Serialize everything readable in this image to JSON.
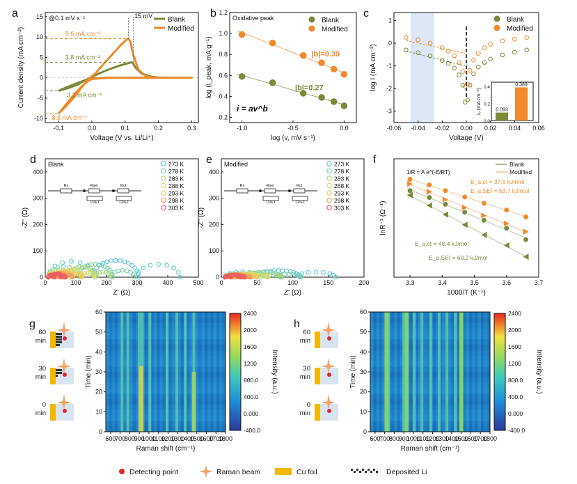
{
  "colors": {
    "blank": "#7a8a3a",
    "modified": "#f08a2a",
    "axis": "#111111",
    "cu": "#f5b800",
    "dot": "#e0262c",
    "shade": "#dce8f6"
  },
  "panels": {
    "a": {
      "letter": "a",
      "scan_rate": "@0.1 mV s⁻¹",
      "xlabel": "Voltage (V vs. Li/Li⁺)",
      "ylabel": "Current density (mA cm⁻²)",
      "xticks": [
        "-0.1",
        "0.0",
        "0.1",
        "0.2",
        "0.3"
      ],
      "yticks": [
        "-10",
        "-5",
        "0",
        "5",
        "10",
        "15"
      ],
      "xlim": [
        -0.14,
        0.32
      ],
      "ylim": [
        -11,
        16
      ],
      "legend": [
        "Blank",
        "Modified"
      ],
      "annotations": {
        "mod_peak": "9.6 mA cm⁻²",
        "blank_peak": "3.8 mA cm⁻²",
        "blank_min": "3.2 mA cm⁻²",
        "mod_min": "8.8 mA cm⁻²",
        "shift": "15 mV"
      },
      "series": [
        {
          "name": "Blank",
          "x": [
            -0.1,
            -0.07,
            -0.04,
            -0.02,
            0.0,
            0.02,
            0.05,
            0.08,
            0.11,
            0.12,
            0.125,
            0.13,
            0.15,
            0.18,
            0.2,
            0.22,
            0.24,
            0.26,
            0.28,
            0.3,
            0.25,
            0.2,
            0.15,
            0.1,
            0.05,
            0.0,
            -0.02,
            -0.05,
            -0.08,
            -0.1
          ],
          "y": [
            -3.2,
            -2.5,
            -1.6,
            -0.6,
            0.2,
            1.0,
            2.0,
            2.9,
            3.6,
            3.8,
            3.4,
            2.6,
            1.0,
            0.25,
            0.05,
            0.0,
            0.0,
            0.0,
            0.0,
            0.0,
            0.0,
            0.0,
            0.0,
            0.0,
            0.0,
            -0.2,
            -0.6,
            -1.5,
            -2.5,
            -3.2
          ]
        },
        {
          "name": "Modified",
          "x": [
            -0.1,
            -0.08,
            -0.05,
            -0.03,
            -0.01,
            0.01,
            0.03,
            0.06,
            0.09,
            0.105,
            0.11,
            0.115,
            0.125,
            0.14,
            0.16,
            0.18,
            0.2,
            0.22,
            0.24,
            0.26,
            0.28,
            0.3,
            0.25,
            0.2,
            0.15,
            0.1,
            0.05,
            0.0,
            -0.02,
            -0.05,
            -0.08,
            -0.1
          ],
          "y": [
            -8.8,
            -7.2,
            -4.5,
            -2.3,
            -0.3,
            1.0,
            2.9,
            5.6,
            8.3,
            9.4,
            9.6,
            9.0,
            5.5,
            2.0,
            0.5,
            0.1,
            0.0,
            0.0,
            0.0,
            0.0,
            0.0,
            0.0,
            0.0,
            0.0,
            0.0,
            0.0,
            0.0,
            -0.3,
            -1.3,
            -3.8,
            -6.8,
            -8.8
          ]
        }
      ]
    },
    "b": {
      "letter": "b",
      "title": "Oxidative peak",
      "xlabel": "log (v, mV s⁻¹)",
      "ylabel": "log (i_peak, mA g⁻¹)",
      "xticks": [
        "-1.0",
        "-0.5",
        "0.0"
      ],
      "yticks": [
        "0.2",
        "0.4",
        "0.6",
        "0.8",
        "1.0",
        "1.2"
      ],
      "xlim": [
        -1.12,
        0.12
      ],
      "ylim": [
        0.15,
        1.2
      ],
      "legend": [
        "Blank",
        "Modified"
      ],
      "equation": "i = av^b",
      "slope_mod": "|b|=0.39",
      "slope_blank": "|b|=0.27",
      "series": [
        {
          "name": "Blank",
          "x": [
            -1.0,
            -0.7,
            -0.4,
            -0.22,
            -0.1,
            0.0
          ],
          "y": [
            0.59,
            0.53,
            0.43,
            0.39,
            0.35,
            0.31
          ]
        },
        {
          "name": "Modified",
          "x": [
            -1.0,
            -0.7,
            -0.4,
            -0.22,
            -0.1,
            0.0
          ],
          "y": [
            0.99,
            0.91,
            0.79,
            0.72,
            0.66,
            0.61
          ]
        }
      ]
    },
    "c": {
      "letter": "c",
      "xlabel": "Voltage (V)",
      "ylabel": "log I (mA cm⁻²)",
      "xticks": [
        "-0.06",
        "-0.04",
        "-0.02",
        "0.00",
        "0.02",
        "0.04",
        "0.06"
      ],
      "yticks": [
        "-3",
        "-2",
        "-1",
        "0",
        "1"
      ],
      "xlim": [
        -0.06,
        0.06
      ],
      "ylim": [
        -3.5,
        1.35
      ],
      "legend": [
        "Blank",
        "Modified"
      ],
      "inset": {
        "ylabel": "I₀ (mA cm⁻²)",
        "values": [
          0.093,
          0.389
        ],
        "labels": [
          "0.093",
          "0.389"
        ],
        "ylim": [
          0.0,
          0.45
        ],
        "yticks": [
          "0.0",
          "0.2",
          "0.4"
        ]
      },
      "series": [
        {
          "name": "Blank",
          "x": [
            -0.05,
            -0.04,
            -0.03,
            -0.02,
            -0.015,
            -0.01,
            -0.006,
            -0.003,
            -0.001,
            0.001,
            0.003,
            0.006,
            0.01,
            0.015,
            0.02,
            0.03,
            0.04,
            0.05
          ],
          "y": [
            -0.3,
            -0.42,
            -0.56,
            -0.76,
            -0.9,
            -1.1,
            -1.4,
            -1.85,
            -2.6,
            -2.5,
            -1.85,
            -1.35,
            -1.05,
            -0.85,
            -0.7,
            -0.52,
            -0.4,
            -0.3
          ]
        },
        {
          "name": "Modified",
          "x": [
            -0.05,
            -0.04,
            -0.03,
            -0.02,
            -0.015,
            -0.01,
            -0.006,
            -0.003,
            -0.001,
            0.001,
            0.003,
            0.006,
            0.01,
            0.015,
            0.02,
            0.03,
            0.04,
            0.05
          ],
          "y": [
            0.25,
            0.15,
            0.0,
            -0.2,
            -0.35,
            -0.55,
            -0.85,
            -1.25,
            -1.9,
            -1.8,
            -1.2,
            -0.75,
            -0.45,
            -0.2,
            -0.05,
            0.1,
            0.18,
            0.25
          ]
        }
      ]
    },
    "d": {
      "letter": "d",
      "title": "Blank",
      "xlabel": "Z' (Ω)",
      "ylabel": "-Z'' (Ω)",
      "xticks": [
        "0",
        "100",
        "200",
        "300",
        "400",
        "500"
      ],
      "yticks": [
        "0",
        "100",
        "200",
        "300",
        "400"
      ],
      "xlim": [
        0,
        500
      ],
      "ylim": [
        0,
        450
      ],
      "circuit": [
        "Rs",
        "Rsei",
        "Rct",
        "CPE1",
        "CPE2"
      ],
      "temps": [
        "273 K",
        "278 K",
        "283 K",
        "288 K",
        "293 K",
        "298 K",
        "303 K"
      ],
      "temp_colors": [
        "#5ec9d1",
        "#7dcfb0",
        "#a9d680",
        "#d8dc72",
        "#f2c55c",
        "#f29a5a",
        "#ec5e5e"
      ],
      "arcs": [
        [
          10,
          160,
          160,
          300,
          440
        ],
        [
          10,
          110,
          110,
          215,
          290
        ],
        [
          10,
          80,
          80,
          160,
          215
        ],
        [
          10,
          60,
          60,
          115,
          160
        ],
        [
          10,
          45,
          45,
          85,
          118
        ],
        [
          10,
          35,
          35,
          62,
          88
        ],
        [
          10,
          28,
          28,
          48,
          65
        ]
      ]
    },
    "e": {
      "letter": "e",
      "title": "Modified",
      "xlabel": "Z' (Ω)",
      "ylabel": "-Z'' (Ω)",
      "xticks": [
        "0",
        "50",
        "100",
        "150",
        "200"
      ],
      "yticks": [
        "0",
        "100",
        "200",
        "300",
        "400"
      ],
      "xlim": [
        0,
        200
      ],
      "ylim": [
        0,
        450
      ],
      "circuit": [
        "Rs",
        "Rsei",
        "Rct",
        "CPE1",
        "CPE2"
      ],
      "temps": [
        "273 K",
        "278 K",
        "283 K",
        "288 K",
        "293 K",
        "298 K",
        "303 K"
      ],
      "arcs": [
        [
          5,
          55,
          55,
          105,
          160
        ],
        [
          5,
          42,
          42,
          78,
          112
        ],
        [
          5,
          32,
          32,
          60,
          85
        ],
        [
          5,
          25,
          25,
          45,
          65
        ],
        [
          5,
          20,
          20,
          36,
          50
        ],
        [
          5,
          16,
          16,
          29,
          40
        ],
        [
          5,
          13,
          13,
          23,
          32
        ]
      ]
    },
    "f": {
      "letter": "f",
      "xlabel": "1000/T (K⁻¹)",
      "ylabel": "lnR⁻¹ (Ω⁻¹)",
      "xticks": [
        "3.3",
        "3.4",
        "3.5",
        "3.6",
        "3.7"
      ],
      "xlim": [
        3.25,
        3.7
      ],
      "ylim": [
        -6.6,
        -1.4
      ],
      "legend": [
        "Blank",
        "Modified"
      ],
      "equation": "1/R = A e^(-E/RT)",
      "labels": {
        "mod_ct": "E_a,ct = 37.6 kJ/mol",
        "mod_sei": "E_a,SEI = 53.7 kJ/mol",
        "blank_ct": "E_a,ct = 48.4 kJ/mol",
        "blank_sei": "E_a,SEI = 60.2 kJ/mol"
      },
      "x": [
        3.3,
        3.36,
        3.41,
        3.47,
        3.53,
        3.6,
        3.66
      ],
      "series": [
        {
          "name": "Modified ct",
          "y": [
            -2.3,
            -2.55,
            -2.8,
            -3.08,
            -3.35,
            -3.65,
            -3.95
          ]
        },
        {
          "name": "Modified SEI",
          "y": [
            -2.5,
            -2.85,
            -3.2,
            -3.55,
            -3.9,
            -4.25,
            -4.6
          ]
        },
        {
          "name": "Blank ct",
          "y": [
            -2.8,
            -3.1,
            -3.4,
            -3.75,
            -4.1,
            -4.45,
            -4.95
          ]
        },
        {
          "name": "Blank SEI",
          "y": [
            -3.0,
            -3.45,
            -3.85,
            -4.3,
            -4.75,
            -5.2,
            -5.7
          ]
        }
      ]
    },
    "g": {
      "letter": "g",
      "xlabel": "Raman shift (cm⁻¹)",
      "ylabel": "Time (min)",
      "xticks": [
        "600",
        "700",
        "800",
        "900",
        "1000",
        "1100",
        "1200",
        "1300",
        "1400",
        "1500",
        "1600",
        "1700",
        "1800"
      ],
      "yticks": [
        "0",
        "10",
        "20",
        "30",
        "40",
        "50",
        "60"
      ],
      "xlim": [
        550,
        1800
      ],
      "ylim": [
        0,
        60
      ],
      "bands": [
        720,
        780,
        900,
        930,
        1010,
        1190,
        1290,
        1380,
        1470
      ],
      "strong_band": 920,
      "times": [
        "60",
        "30",
        "0"
      ],
      "time_unit": "min"
    },
    "h": {
      "letter": "h",
      "xlabel": "Raman shift (cm⁻¹)",
      "ylabel": "Time (min)",
      "xticks": [
        "600",
        "700",
        "800",
        "900",
        "1000",
        "1100",
        "1200",
        "1300",
        "1400",
        "1500",
        "1600",
        "1700",
        "1800"
      ],
      "yticks": [
        "0",
        "10",
        "20",
        "30",
        "40",
        "50",
        "60"
      ],
      "xlim": [
        550,
        1800
      ],
      "ylim": [
        0,
        60
      ],
      "bands": [
        720,
        740,
        900,
        930,
        1010,
        1090,
        1180,
        1270,
        1350,
        1440,
        1500
      ],
      "times": [
        "60",
        "30",
        "0"
      ],
      "time_unit": "min"
    },
    "colorbar": {
      "label": "Intensity (a.u.)",
      "ticks": [
        "2400",
        "2000",
        "1600",
        "1200",
        "800.0",
        "400.0",
        "0.000",
        "-400.0"
      ]
    }
  },
  "legend_bottom": {
    "items": [
      "Detecting point",
      "Raman beam",
      "Cu foil",
      "Deposited Li"
    ]
  }
}
